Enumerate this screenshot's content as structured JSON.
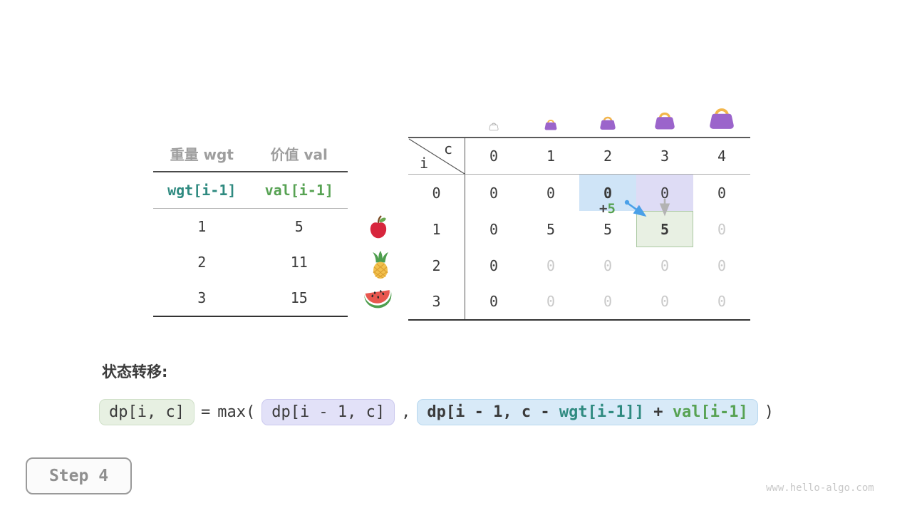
{
  "items_table": {
    "headers": [
      "重量 wgt",
      "价值 val"
    ],
    "index_row": [
      "wgt[i-1]",
      "val[i-1]"
    ],
    "rows": [
      [
        "1",
        "5"
      ],
      [
        "2",
        "11"
      ],
      [
        "3",
        "15"
      ]
    ]
  },
  "fruits": [
    "apple",
    "pineapple",
    "watermelon"
  ],
  "dp_table": {
    "corner": {
      "row_var": "i",
      "col_var": "c"
    },
    "col_headers": [
      "0",
      "1",
      "2",
      "3",
      "4"
    ],
    "rows": [
      {
        "header": "0",
        "cells": [
          {
            "v": "0"
          },
          {
            "v": "0"
          },
          {
            "v": "0",
            "style": "bold hl-blue"
          },
          {
            "v": "0",
            "style": "hl-lavender"
          },
          {
            "v": "0"
          }
        ]
      },
      {
        "header": "1",
        "cells": [
          {
            "v": "0"
          },
          {
            "v": "5"
          },
          {
            "v": "5"
          },
          {
            "v": "5",
            "style": "bold hl-green"
          },
          {
            "v": "0",
            "style": "pending"
          }
        ]
      },
      {
        "header": "2",
        "cells": [
          {
            "v": "0"
          },
          {
            "v": "0",
            "style": "pending"
          },
          {
            "v": "0",
            "style": "pending"
          },
          {
            "v": "0",
            "style": "pending"
          },
          {
            "v": "0",
            "style": "pending"
          }
        ]
      },
      {
        "header": "3",
        "cells": [
          {
            "v": "0"
          },
          {
            "v": "0",
            "style": "pending"
          },
          {
            "v": "0",
            "style": "pending"
          },
          {
            "v": "0",
            "style": "pending"
          },
          {
            "v": "0",
            "style": "pending"
          }
        ]
      }
    ],
    "annotation": {
      "plus": "+",
      "value": "5"
    }
  },
  "formula": {
    "label": "状态转移:",
    "lhs": "dp[i, c]",
    "equals": "=",
    "max_open": "max(",
    "option1": "dp[i - 1, c]",
    "comma": ",",
    "option2_prefix": "dp[i - 1, c - ",
    "option2_wgt": "wgt[i-1]]",
    "option2_plus": " + ",
    "option2_val": "val[i-1]",
    "close": ")"
  },
  "step_button": {
    "label": "Step 4"
  },
  "watermark": "www.hello-algo.com",
  "colors": {
    "teal": "#2F8A80",
    "green": "#57A253",
    "gray_header": "#9E9E9E",
    "highlight_blue": "#CFE4F7",
    "highlight_lavender": "#DEDCF5",
    "highlight_green": "#E8F0E3",
    "arrow_blue": "#4AA0E8",
    "arrow_gray": "#B3B3B3",
    "bag_purple": "#9B64CB",
    "bag_handle": "#F2B64B"
  }
}
